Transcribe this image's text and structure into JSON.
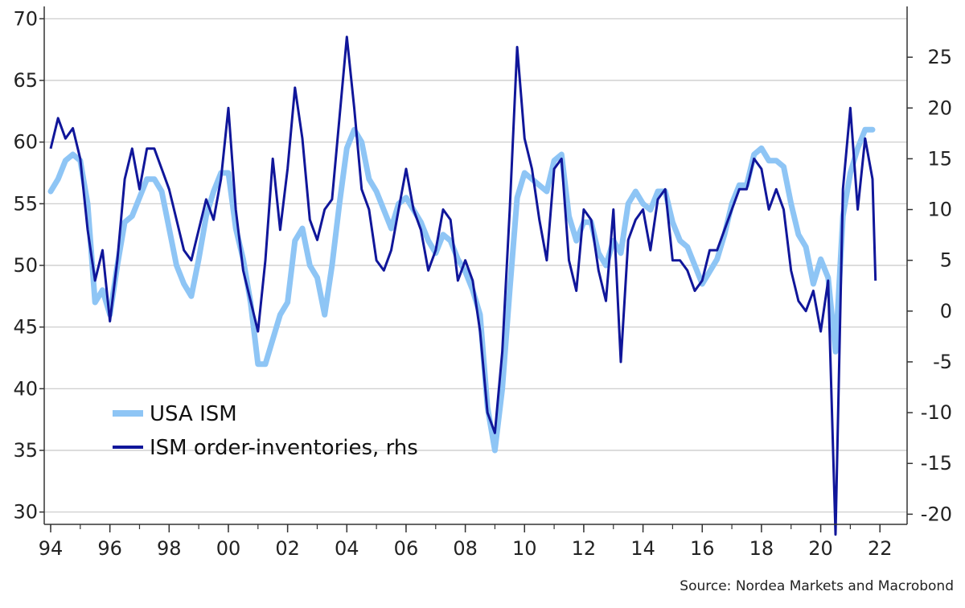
{
  "chart_data": {
    "type": "line",
    "source": "Source: Nordea Markets and Macrobond",
    "x_ticks": [
      "94",
      "96",
      "98",
      "00",
      "02",
      "04",
      "06",
      "08",
      "10",
      "12",
      "14",
      "16",
      "18",
      "20",
      "22"
    ],
    "x_tick_years": [
      1994,
      1996,
      1998,
      2000,
      2002,
      2004,
      2006,
      2008,
      2010,
      2012,
      2014,
      2016,
      2018,
      2020,
      2022
    ],
    "xlim": [
      1994,
      2022.7
    ],
    "y_left": {
      "ticks": [
        "30",
        "35",
        "40",
        "45",
        "50",
        "55",
        "60",
        "65",
        "70"
      ],
      "tick_values": [
        30,
        35,
        40,
        45,
        50,
        55,
        60,
        65,
        70
      ],
      "lim": [
        29,
        71
      ]
    },
    "y_right": {
      "ticks": [
        "-20",
        "-15",
        "-10",
        "-5",
        "0",
        "5",
        "10",
        "15",
        "20",
        "25"
      ],
      "tick_values": [
        -20,
        -15,
        -10,
        -5,
        0,
        5,
        10,
        15,
        20,
        25
      ],
      "lim": [
        -21,
        30
      ]
    },
    "grid": true,
    "legend_position": "bottom-left",
    "series": [
      {
        "name": "USA ISM",
        "axis": "left",
        "color": "#8ec5f5",
        "x": [
          1994.0,
          1994.25,
          1994.5,
          1994.75,
          1995.0,
          1995.25,
          1995.5,
          1995.75,
          1996.0,
          1996.25,
          1996.5,
          1996.75,
          1997.0,
          1997.25,
          1997.5,
          1997.75,
          1998.0,
          1998.25,
          1998.5,
          1998.75,
          1999.0,
          1999.25,
          1999.5,
          1999.75,
          2000.0,
          2000.25,
          2000.5,
          2000.75,
          2001.0,
          2001.25,
          2001.5,
          2001.75,
          2002.0,
          2002.25,
          2002.5,
          2002.75,
          2003.0,
          2003.25,
          2003.5,
          2003.75,
          2004.0,
          2004.25,
          2004.5,
          2004.75,
          2005.0,
          2005.25,
          2005.5,
          2005.75,
          2006.0,
          2006.25,
          2006.5,
          2006.75,
          2007.0,
          2007.25,
          2007.5,
          2007.75,
          2008.0,
          2008.25,
          2008.5,
          2008.75,
          2009.0,
          2009.25,
          2009.5,
          2009.75,
          2010.0,
          2010.25,
          2010.5,
          2010.75,
          2011.0,
          2011.25,
          2011.5,
          2011.75,
          2012.0,
          2012.25,
          2012.5,
          2012.75,
          2013.0,
          2013.25,
          2013.5,
          2013.75,
          2014.0,
          2014.25,
          2014.5,
          2014.75,
          2015.0,
          2015.25,
          2015.5,
          2015.75,
          2016.0,
          2016.25,
          2016.5,
          2016.75,
          2017.0,
          2017.25,
          2017.5,
          2017.75,
          2018.0,
          2018.25,
          2018.5,
          2018.75,
          2019.0,
          2019.25,
          2019.5,
          2019.75,
          2020.0,
          2020.25,
          2020.5,
          2020.75,
          2021.0,
          2021.25,
          2021.5,
          2021.75
        ],
        "values": [
          56.0,
          57.0,
          58.5,
          59.0,
          58.5,
          55.0,
          47.0,
          48.0,
          46.0,
          50.0,
          53.5,
          54.0,
          55.5,
          57.0,
          57.0,
          56.0,
          53.0,
          50.0,
          48.5,
          47.5,
          50.5,
          54.0,
          56.0,
          57.5,
          57.5,
          53.0,
          50.5,
          47.0,
          42.0,
          42.0,
          44.0,
          46.0,
          47.0,
          52.0,
          53.0,
          50.0,
          49.0,
          46.0,
          50.0,
          55.0,
          59.5,
          61.0,
          60.0,
          57.0,
          56.0,
          54.5,
          53.0,
          55.0,
          55.5,
          54.5,
          53.5,
          52.0,
          51.0,
          52.5,
          52.0,
          50.5,
          49.5,
          48.0,
          46.0,
          38.5,
          35.0,
          40.0,
          48.0,
          55.5,
          57.5,
          57.0,
          56.5,
          56.0,
          58.5,
          59.0,
          54.0,
          52.0,
          53.5,
          53.5,
          51.0,
          50.0,
          52.0,
          51.0,
          55.0,
          56.0,
          55.0,
          54.5,
          56.0,
          56.0,
          53.5,
          52.0,
          51.5,
          50.0,
          48.5,
          49.5,
          50.5,
          52.5,
          55.0,
          56.5,
          56.5,
          59.0,
          59.5,
          58.5,
          58.5,
          58.0,
          55.0,
          52.5,
          51.5,
          48.5,
          50.5,
          49.0,
          43.0,
          54.0,
          57.5,
          59.5,
          61.0,
          61.0
        ]
      },
      {
        "name": "ISM order-inventories, rhs",
        "axis": "right",
        "color": "#10169a",
        "x": [
          1994.0,
          1994.25,
          1994.5,
          1994.75,
          1995.0,
          1995.25,
          1995.5,
          1995.75,
          1996.0,
          1996.25,
          1996.5,
          1996.75,
          1997.0,
          1997.25,
          1997.5,
          1997.75,
          1998.0,
          1998.25,
          1998.5,
          1998.75,
          1999.0,
          1999.25,
          1999.5,
          1999.75,
          2000.0,
          2000.25,
          2000.5,
          2000.75,
          2001.0,
          2001.25,
          2001.5,
          2001.75,
          2002.0,
          2002.25,
          2002.5,
          2002.75,
          2003.0,
          2003.25,
          2003.5,
          2003.75,
          2004.0,
          2004.25,
          2004.5,
          2004.75,
          2005.0,
          2005.25,
          2005.5,
          2005.75,
          2006.0,
          2006.25,
          2006.5,
          2006.75,
          2007.0,
          2007.25,
          2007.5,
          2007.75,
          2008.0,
          2008.25,
          2008.5,
          2008.75,
          2009.0,
          2009.25,
          2009.5,
          2009.75,
          2010.0,
          2010.25,
          2010.5,
          2010.75,
          2011.0,
          2011.25,
          2011.5,
          2011.75,
          2012.0,
          2012.25,
          2012.5,
          2012.75,
          2013.0,
          2013.25,
          2013.5,
          2013.75,
          2014.0,
          2014.25,
          2014.5,
          2014.75,
          2015.0,
          2015.25,
          2015.5,
          2015.75,
          2016.0,
          2016.25,
          2016.5,
          2016.75,
          2017.0,
          2017.25,
          2017.5,
          2017.75,
          2018.0,
          2018.25,
          2018.5,
          2018.75,
          2019.0,
          2019.25,
          2019.5,
          2019.75,
          2020.0,
          2020.25,
          2020.5,
          2020.75,
          2021.0,
          2021.25,
          2021.5,
          2021.75,
          2021.85
        ],
        "values": [
          16.0,
          19.0,
          17.0,
          18.0,
          15.0,
          8.0,
          3.0,
          6.0,
          -1.0,
          5.0,
          13.0,
          16.0,
          12.0,
          16.0,
          16.0,
          14.0,
          12.0,
          9.0,
          6.0,
          5.0,
          8.0,
          11.0,
          9.0,
          13.0,
          20.0,
          10.0,
          4.0,
          1.0,
          -2.0,
          5.0,
          15.0,
          8.0,
          14.0,
          22.0,
          17.0,
          9.0,
          7.0,
          10.0,
          11.0,
          19.0,
          27.0,
          20.0,
          12.0,
          10.0,
          5.0,
          4.0,
          6.0,
          10.0,
          14.0,
          10.0,
          8.0,
          4.0,
          6.0,
          10.0,
          9.0,
          3.0,
          5.0,
          3.0,
          -2.0,
          -10.0,
          -12.0,
          -4.0,
          10.0,
          26.0,
          17.0,
          14.0,
          9.0,
          5.0,
          14.0,
          15.0,
          5.0,
          2.0,
          10.0,
          9.0,
          4.0,
          1.0,
          10.0,
          -5.0,
          7.0,
          9.0,
          10.0,
          6.0,
          11.0,
          12.0,
          5.0,
          5.0,
          4.0,
          2.0,
          3.0,
          6.0,
          6.0,
          8.0,
          10.0,
          12.0,
          12.0,
          15.0,
          14.0,
          10.0,
          12.0,
          10.0,
          4.0,
          1.0,
          0.0,
          2.0,
          -2.0,
          3.0,
          -22.0,
          12.0,
          20.0,
          10.0,
          17.0,
          13.0,
          3.0
        ]
      }
    ]
  }
}
